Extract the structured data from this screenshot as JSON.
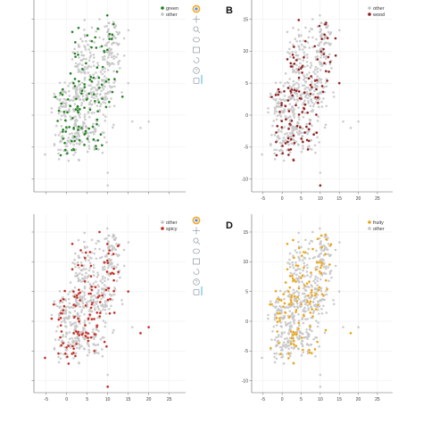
{
  "chart_data": [
    {
      "type": "scatter",
      "panel": "A",
      "panel_letter": "",
      "legend": [
        {
          "label": "green",
          "color": "#1e7d1e"
        },
        {
          "label": "other",
          "color": "#c4c4c4"
        }
      ],
      "highlight_color": "#1e7d1e",
      "other_color": "#c4c4c4",
      "xlim": [
        -8,
        29
      ],
      "ylim": [
        -12,
        18
      ],
      "xticks": [
        -5,
        0,
        5,
        10,
        15,
        20,
        25
      ],
      "yticks": [
        -10,
        -5,
        0,
        5,
        10,
        15
      ],
      "show_xtick_labels": false,
      "show_ytick_labels": false,
      "toolbar": true
    },
    {
      "type": "scatter",
      "panel": "B",
      "panel_letter": "B",
      "legend": [
        {
          "label": "other",
          "color": "#c4c4c4"
        },
        {
          "label": "wood",
          "color": "#8b1a1a"
        }
      ],
      "highlight_color": "#8b1a1a",
      "other_color": "#c4c4c4",
      "xlim": [
        -8,
        29
      ],
      "ylim": [
        -12,
        18
      ],
      "xticks": [
        -5,
        0,
        5,
        10,
        15,
        20,
        25
      ],
      "yticks": [
        -10,
        -5,
        0,
        5,
        10,
        15
      ],
      "show_xtick_labels": true,
      "show_ytick_labels": true,
      "toolbar": false
    },
    {
      "type": "scatter",
      "panel": "C",
      "panel_letter": "",
      "legend": [
        {
          "label": "other",
          "color": "#c4c4c4"
        },
        {
          "label": "spicy",
          "color": "#c0281e"
        }
      ],
      "highlight_color": "#c0281e",
      "other_color": "#c4c4c4",
      "xlim": [
        -8,
        29
      ],
      "ylim": [
        -12,
        18
      ],
      "xticks": [
        -5,
        0,
        5,
        10,
        15,
        20,
        25
      ],
      "yticks": [
        -10,
        -5,
        0,
        5,
        10,
        15
      ],
      "show_xtick_labels": true,
      "show_ytick_labels": false,
      "toolbar": true
    },
    {
      "type": "scatter",
      "panel": "D",
      "panel_letter": "D",
      "legend": [
        {
          "label": "fruity",
          "color": "#e8a317"
        },
        {
          "label": "other",
          "color": "#c4c4c4"
        }
      ],
      "highlight_color": "#e8a317",
      "other_color": "#c4c4c4",
      "xlim": [
        -8,
        29
      ],
      "ylim": [
        -12,
        18
      ],
      "xticks": [
        -5,
        0,
        5,
        10,
        15,
        20,
        25
      ],
      "yticks": [
        -10,
        -5,
        0,
        5,
        10,
        15
      ],
      "show_xtick_labels": true,
      "show_ytick_labels": true,
      "toolbar": false
    }
  ],
  "toolbar_icons": [
    "bokeh-logo-icon",
    "pan-icon",
    "zoom-icon",
    "wheel-zoom-icon",
    "lasso-icon",
    "reset-icon",
    "help-icon",
    "save-icon"
  ]
}
